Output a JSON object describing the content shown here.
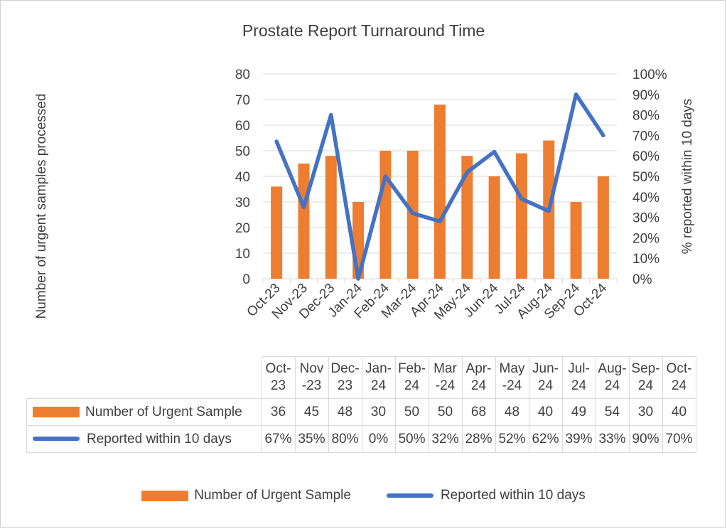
{
  "chart_data": {
    "type": "bar",
    "title": "Prostate Report Turnaround Time",
    "ylabel": "Number of urgent samples processed",
    "y2label": "% reported within 10 days",
    "categories": [
      "Oct-23",
      "Nov-23",
      "Dec-23",
      "Jan-24",
      "Feb-24",
      "Mar-24",
      "Apr-24",
      "May-24",
      "Jun-24",
      "Jul-24",
      "Aug-24",
      "Sep-24",
      "Oct-24"
    ],
    "ylim": [
      0,
      80
    ],
    "y_ticks": [
      "0",
      "10",
      "20",
      "30",
      "40",
      "50",
      "60",
      "70",
      "80"
    ],
    "y2lim": [
      0,
      100
    ],
    "y2_ticks": [
      "0%",
      "10%",
      "20%",
      "30%",
      "40%",
      "50%",
      "60%",
      "70%",
      "80%",
      "90%",
      "100%"
    ],
    "grid": true,
    "legend_position": "bottom",
    "series": [
      {
        "name": "Number of Urgent Sample",
        "type": "bar",
        "axis": "left",
        "color": "#ED7D31",
        "values": [
          36,
          45,
          48,
          30,
          50,
          50,
          68,
          48,
          40,
          49,
          54,
          30,
          40
        ]
      },
      {
        "name": "Reported within 10 days",
        "type": "line",
        "axis": "right",
        "color": "#4472C4",
        "values": [
          67,
          35,
          80,
          0,
          50,
          32,
          28,
          52,
          62,
          39,
          33,
          90,
          70
        ]
      }
    ],
    "data_table": {
      "headers": [
        [
          "Oct-",
          "23"
        ],
        [
          "Nov",
          "-23"
        ],
        [
          "Dec-",
          "23"
        ],
        [
          "Jan-",
          "24"
        ],
        [
          "Feb-",
          "24"
        ],
        [
          "Mar",
          "-24"
        ],
        [
          "Apr-",
          "24"
        ],
        [
          "May",
          "-24"
        ],
        [
          "Jun-",
          "24"
        ],
        [
          "Jul-",
          "24"
        ],
        [
          "Aug-",
          "24"
        ],
        [
          "Sep-",
          "24"
        ],
        [
          "Oct-",
          "24"
        ]
      ],
      "rows": [
        {
          "label": "Number of Urgent Sample",
          "cells": [
            "36",
            "45",
            "48",
            "30",
            "50",
            "50",
            "68",
            "48",
            "40",
            "49",
            "54",
            "30",
            "40"
          ]
        },
        {
          "label": "Reported within 10 days",
          "cells": [
            "67%",
            "35%",
            "80%",
            "0%",
            "50%",
            "32%",
            "28%",
            "52%",
            "62%",
            "39%",
            "33%",
            "90%",
            "70%"
          ]
        }
      ]
    }
  }
}
